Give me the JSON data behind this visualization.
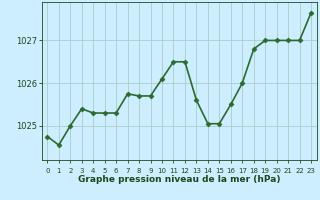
{
  "x": [
    0,
    1,
    2,
    3,
    4,
    5,
    6,
    7,
    8,
    9,
    10,
    11,
    12,
    13,
    14,
    15,
    16,
    17,
    18,
    19,
    20,
    21,
    22,
    23
  ],
  "y": [
    1024.75,
    1024.55,
    1025.0,
    1025.4,
    1025.3,
    1025.3,
    1025.3,
    1025.75,
    1025.7,
    1025.7,
    1026.1,
    1026.5,
    1026.5,
    1025.6,
    1025.05,
    1025.05,
    1025.5,
    1026.0,
    1026.8,
    1027.0,
    1027.0,
    1027.0,
    1027.0,
    1027.65
  ],
  "line_color": "#2d6a2d",
  "marker": "D",
  "marker_size": 2.5,
  "bg_color": "#cceeff",
  "grid_color": "#aacccc",
  "xlabel": "Graphe pression niveau de la mer (hPa)",
  "xlabel_color": "#1a4a1a",
  "tick_color": "#1a4a1a",
  "ylim": [
    1024.2,
    1027.9
  ],
  "yticks": [
    1025,
    1026,
    1027
  ],
  "xlim": [
    -0.5,
    23.5
  ],
  "linewidth": 1.2,
  "figsize": [
    3.2,
    2.0
  ],
  "dpi": 100
}
